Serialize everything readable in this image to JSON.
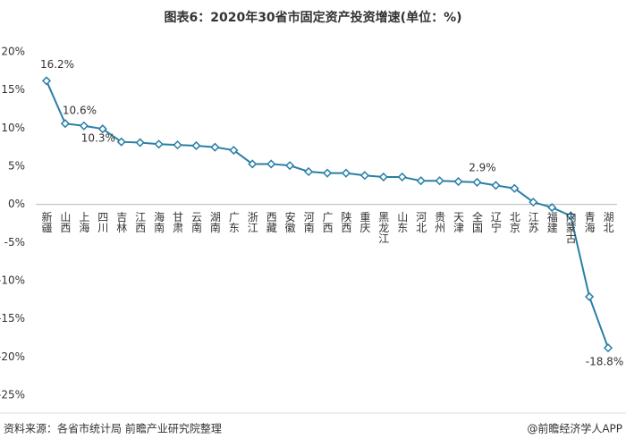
{
  "chart_data": {
    "type": "line",
    "title": "图表6：2020年30省市固定资产投资增速(单位：%)",
    "categories": [
      "新疆",
      "山西",
      "上海",
      "四川",
      "吉林",
      "江西",
      "海南",
      "甘肃",
      "云南",
      "湖南",
      "广东",
      "浙江",
      "西藏",
      "安徽",
      "河南",
      "广西",
      "陕西",
      "重庆",
      "黑龙江",
      "山东",
      "河北",
      "贵州",
      "天津",
      "全国",
      "辽宁",
      "北京",
      "江苏",
      "福建",
      "内蒙古",
      "青海",
      "湖北"
    ],
    "values": [
      16.2,
      10.6,
      10.3,
      9.9,
      8.2,
      8.1,
      7.9,
      7.8,
      7.7,
      7.5,
      7.1,
      5.3,
      5.3,
      5.1,
      4.3,
      4.1,
      4.1,
      3.8,
      3.6,
      3.6,
      3.1,
      3.1,
      3.0,
      2.9,
      2.5,
      2.1,
      0.3,
      -0.4,
      -1.5,
      -12.1,
      -18.8
    ],
    "value_labels": [
      "16.2%",
      "10.6%",
      "10.3%",
      null,
      null,
      null,
      null,
      null,
      null,
      null,
      null,
      null,
      null,
      null,
      null,
      null,
      null,
      null,
      null,
      null,
      null,
      null,
      null,
      "2.9%",
      null,
      null,
      null,
      null,
      null,
      null,
      "-18.8%"
    ],
    "color": "#2a7fa6",
    "ylim": [
      -25,
      20
    ],
    "yticks": [
      {
        "value": -25,
        "label": "-25%"
      },
      {
        "value": -20,
        "label": "-20%"
      },
      {
        "value": -15,
        "label": "-15%"
      },
      {
        "value": -10,
        "label": "-10%"
      },
      {
        "value": -5,
        "label": "-5%"
      },
      {
        "value": 0,
        "label": "0%"
      },
      {
        "value": 5,
        "label": "5%"
      },
      {
        "value": 10,
        "label": "10%"
      },
      {
        "value": 15,
        "label": "15%"
      },
      {
        "value": 20,
        "label": "20%"
      }
    ],
    "source": "资料来源：各省市统计局 前瞻产业研究院整理",
    "credit": "@前瞻经济学人APP"
  }
}
